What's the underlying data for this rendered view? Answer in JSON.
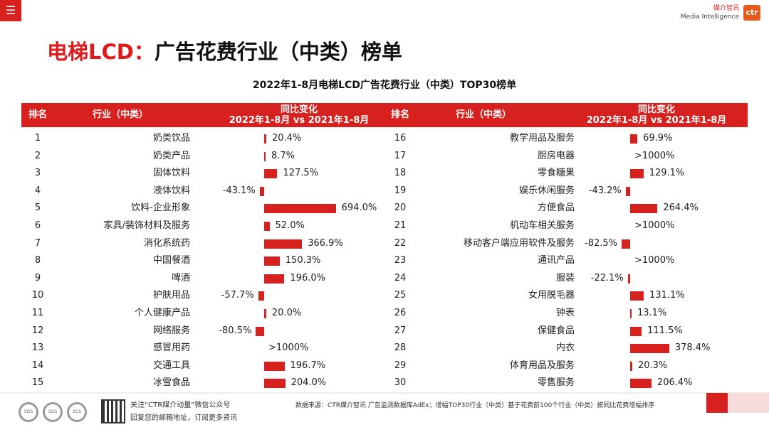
{
  "menu_icon": "menu-icon",
  "logo": {
    "cn": "媒介智讯",
    "en": "Media Intelligence",
    "mark": "ctr"
  },
  "title": {
    "part1": "电梯LCD：",
    "part2": "广告花费行业（中类）榜单"
  },
  "subtitle": "2022年1-8月电梯LCD广告花费行业（中类）TOP30榜单",
  "headers": {
    "rank": "排名",
    "industry": "行业（中类）",
    "change_line1": "同比变化",
    "change_line2": "2022年1-8月 vs 2021年1-8月"
  },
  "rows": [
    {
      "rank": "1",
      "industry": "奶类饮品",
      "change": "20.4%",
      "value": 20.4
    },
    {
      "rank": "2",
      "industry": "奶类产品",
      "change": "8.7%",
      "value": 8.7
    },
    {
      "rank": "3",
      "industry": "固体饮料",
      "change": "127.5%",
      "value": 127.5
    },
    {
      "rank": "4",
      "industry": "液体饮料",
      "change": "-43.1%",
      "value": -43.1
    },
    {
      "rank": "5",
      "industry": "饮料-企业形象",
      "change": "694.0%",
      "value": 694.0
    },
    {
      "rank": "6",
      "industry": "家具/装饰材料及服务",
      "change": "52.0%",
      "value": 52.0
    },
    {
      "rank": "7",
      "industry": "消化系统药",
      "change": "366.9%",
      "value": 366.9
    },
    {
      "rank": "8",
      "industry": "中国餐酒",
      "change": "150.3%",
      "value": 150.3
    },
    {
      "rank": "9",
      "industry": "啤酒",
      "change": "196.0%",
      "value": 196.0
    },
    {
      "rank": "10",
      "industry": "护肤用品",
      "change": "-57.7%",
      "value": -57.7
    },
    {
      "rank": "11",
      "industry": "个人健康产品",
      "change": "20.0%",
      "value": 20.0
    },
    {
      "rank": "12",
      "industry": "网络服务",
      "change": "-80.5%",
      "value": -80.5
    },
    {
      "rank": "13",
      "industry": "感冒用药",
      "change": ">1000%",
      "value": null
    },
    {
      "rank": "14",
      "industry": "交通工具",
      "change": "196.7%",
      "value": 196.7
    },
    {
      "rank": "15",
      "industry": "冰雪食品",
      "change": "204.0%",
      "value": 204.0
    },
    {
      "rank": "16",
      "industry": "教学用品及服务",
      "change": "69.9%",
      "value": 69.9
    },
    {
      "rank": "17",
      "industry": "厨房电器",
      "change": ">1000%",
      "value": null
    },
    {
      "rank": "18",
      "industry": "零食糖果",
      "change": "129.1%",
      "value": 129.1
    },
    {
      "rank": "19",
      "industry": "娱乐休闲服务",
      "change": "-43.2%",
      "value": -43.2
    },
    {
      "rank": "20",
      "industry": "方便食品",
      "change": "264.4%",
      "value": 264.4
    },
    {
      "rank": "21",
      "industry": "机动车相关服务",
      "change": ">1000%",
      "value": null
    },
    {
      "rank": "22",
      "industry": "移动客户端应用软件及服务",
      "change": "-82.5%",
      "value": -82.5
    },
    {
      "rank": "23",
      "industry": "通讯产品",
      "change": ">1000%",
      "value": null
    },
    {
      "rank": "24",
      "industry": "服装",
      "change": "-22.1%",
      "value": -22.1
    },
    {
      "rank": "25",
      "industry": "女用脱毛器",
      "change": "131.1%",
      "value": 131.1
    },
    {
      "rank": "26",
      "industry": "钟表",
      "change": "13.1%",
      "value": 13.1
    },
    {
      "rank": "27",
      "industry": "保健食品",
      "change": "111.5%",
      "value": 111.5
    },
    {
      "rank": "28",
      "industry": "内衣",
      "change": "378.4%",
      "value": 378.4
    },
    {
      "rank": "29",
      "industry": "体育用品及服务",
      "change": "20.3%",
      "value": 20.3
    },
    {
      "rank": "30",
      "industry": "零售服务",
      "change": "206.4%",
      "value": 206.4
    }
  ],
  "footer": {
    "follow": "关注“CTR媒介动量”微信公众号",
    "reply": "回复您的邮箱地址，订阅更多资讯",
    "source": "数据来源：CTR媒介智讯 广告监测数据库AdEx；增幅TOP30行业（中类）基于花费前100个行业（中类）按同比花费增幅排序",
    "seal_label": "SGS"
  },
  "colors": {
    "accent": "#d7211e",
    "title_red": "#e01a1a"
  }
}
